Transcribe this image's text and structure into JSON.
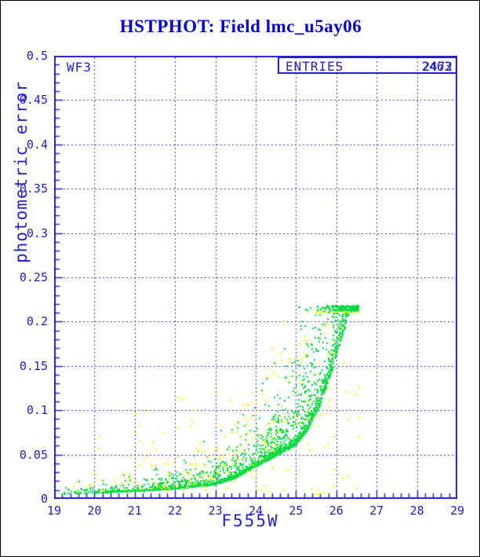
{
  "page": {
    "background": "#ffffff",
    "border_color": "#000000"
  },
  "title": {
    "text": "HSTPHOT: Field lmc_u5ay06",
    "color": "#0000d9"
  },
  "plot": {
    "frame_color": "#2222cc",
    "grid_color": "#3333cf",
    "text_color": "#2222cc",
    "detector_label": "WF3",
    "entries_box": {
      "label": "ENTRIES",
      "values": [
        "2463",
        "2472"
      ]
    },
    "xlabel": "F555W",
    "ylabel": "photometric error",
    "x_tick_labels": [
      "19",
      "20",
      "21",
      "22",
      "23",
      "24",
      "25",
      "26",
      "27",
      "28",
      "29"
    ],
    "y_tick_labels": [
      "0.5",
      "0.45",
      "0.4",
      "0.35",
      "0.3",
      "0.25",
      "0.2",
      "0.15",
      "0.1",
      "0.05",
      "0"
    ]
  },
  "chart_data": {
    "type": "scatter",
    "title": "HSTPHOT: Field lmc_u5ay06",
    "xlabel": "F555W",
    "ylabel": "photometric error",
    "xlim": [
      19,
      29
    ],
    "ylim": [
      0,
      0.5
    ],
    "x_major_tick": 1,
    "x_minor_tick": 0.2,
    "y_major_tick": 0.05,
    "y_minor_tick": 0.01,
    "grid": "dashed blue lines at major ticks, solid frame, ticks inward on left and bottom axes",
    "legend_position": "none",
    "annotations": [
      "WF3 (top-left)",
      "ENTRIES 2463 and 2472 overprinted (top-right box)"
    ],
    "description": "Photometric error vs F555W magnitude. Dense green ridge rises exponentially from error ~0.005 at mag 19 to ~0.21 at mag 26.3, truncated near 0.215; diffuse green cloud above ridge; sparse yellow points scattered from error 0.005 up to ~0.21 mostly between mags 23 and 26.5; no data fainter than mag ~26.6.",
    "series": [
      {
        "name": "chip-photometry-green",
        "color": "#00dc3c",
        "marker": "2px square",
        "entries": 2463,
        "mag_range": [
          19.0,
          26.55
        ],
        "error_cap": 0.215,
        "ridge_curve": [
          [
            19.0,
            0.005
          ],
          [
            20.0,
            0.0065
          ],
          [
            21.0,
            0.0085
          ],
          [
            22.0,
            0.011
          ],
          [
            23.0,
            0.016
          ],
          [
            23.5,
            0.023
          ],
          [
            24.0,
            0.036
          ],
          [
            24.5,
            0.048
          ],
          [
            25.0,
            0.06
          ],
          [
            25.3,
            0.078
          ],
          [
            25.6,
            0.105
          ],
          [
            25.9,
            0.145
          ],
          [
            26.1,
            0.175
          ],
          [
            26.3,
            0.205
          ],
          [
            26.45,
            0.213
          ]
        ]
      },
      {
        "name": "chip-photometry-yellow",
        "color": "#ffff00",
        "marker": "2px square",
        "entries": 2472,
        "visible_points": 280,
        "mag_range": [
          19.4,
          26.6
        ],
        "error_cap": 0.211
      }
    ],
    "generation": {
      "seed": 42,
      "green": {
        "count": 2463,
        "m_min": 19.0,
        "m_max": 26.55,
        "m_power": 0.5,
        "tight_frac": 0.6,
        "tight_sigma": 0.08,
        "mid_frac": 0.3,
        "mid_base": 1.12,
        "mid_sigma": 0.5,
        "wide_base": 1.3,
        "wide_sigma": 1.1,
        "err_cap": 0.211,
        "cap_jitter": 0.007,
        "err_floor": 0.004
      },
      "yellow": {
        "count": 280,
        "m_min": 19.4,
        "m_max": 26.6,
        "m_power": 0.68,
        "ridge_frac": 0.55,
        "ridge_base": 1.1,
        "ridge_sigma": 1.6,
        "uniform_floor": 0.005,
        "uniform_pow": 1.8,
        "uniform_scale": 0.2,
        "err_cap": 0.211,
        "err_floor": 0.005
      }
    }
  }
}
